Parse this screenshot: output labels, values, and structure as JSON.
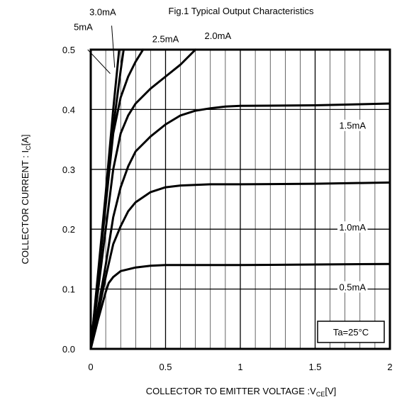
{
  "chart_data": {
    "type": "line",
    "title": "Fig.1 Typical Output Characteristics",
    "xlabel": {
      "main": "COLLECTOR TO EMITTER VOLTAGE :V",
      "sub": "CE",
      "unit": "[V]"
    },
    "ylabel": {
      "main": "COLLECTOR CURRENT : I",
      "sub": "C",
      "unit": "[A]"
    },
    "xlim": [
      0,
      2
    ],
    "ylim": [
      0,
      0.5
    ],
    "x_ticks": [
      0,
      0.5,
      1,
      1.5,
      2
    ],
    "x_tick_labels": [
      "0",
      "0.5",
      "1",
      "1.5",
      "2"
    ],
    "y_ticks": [
      0,
      0.1,
      0.2,
      0.3,
      0.4,
      0.5
    ],
    "y_tick_labels": [
      "0.0",
      "0.1",
      "0.2",
      "0.3",
      "0.4",
      "0.5"
    ],
    "grid": true,
    "annotation": "Ta=25°C",
    "series": [
      {
        "name": "0.5mA",
        "x": [
          0,
          0.05,
          0.1,
          0.12,
          0.15,
          0.2,
          0.3,
          0.4,
          0.5,
          0.75,
          1.0,
          1.5,
          2.0
        ],
        "y": [
          0,
          0.05,
          0.095,
          0.11,
          0.12,
          0.13,
          0.136,
          0.139,
          0.14,
          0.14,
          0.14,
          0.141,
          0.142
        ]
      },
      {
        "name": "1.0mA",
        "x": [
          0,
          0.05,
          0.1,
          0.15,
          0.2,
          0.25,
          0.3,
          0.4,
          0.5,
          0.6,
          0.8,
          1.0,
          1.5,
          2.0
        ],
        "y": [
          0,
          0.06,
          0.12,
          0.175,
          0.205,
          0.23,
          0.245,
          0.262,
          0.27,
          0.273,
          0.275,
          0.275,
          0.276,
          0.278
        ]
      },
      {
        "name": "1.5mA",
        "x": [
          0,
          0.05,
          0.1,
          0.15,
          0.2,
          0.25,
          0.3,
          0.4,
          0.5,
          0.6,
          0.7,
          0.8,
          0.9,
          1.0,
          1.5,
          2.0
        ],
        "y": [
          0,
          0.07,
          0.14,
          0.22,
          0.27,
          0.305,
          0.33,
          0.355,
          0.375,
          0.39,
          0.398,
          0.402,
          0.405,
          0.406,
          0.407,
          0.41
        ]
      },
      {
        "name": "2.0mA",
        "x": [
          0,
          0.05,
          0.1,
          0.15,
          0.2,
          0.25,
          0.3,
          0.4,
          0.5,
          0.6,
          0.7
        ],
        "y": [
          0,
          0.1,
          0.2,
          0.3,
          0.36,
          0.39,
          0.41,
          0.435,
          0.455,
          0.475,
          0.5
        ]
      },
      {
        "name": "2.5mA",
        "x": [
          0,
          0.05,
          0.1,
          0.15,
          0.2,
          0.25,
          0.3,
          0.35
        ],
        "y": [
          0,
          0.12,
          0.24,
          0.36,
          0.42,
          0.455,
          0.48,
          0.5
        ]
      },
      {
        "name": "3.0mA",
        "x": [
          0,
          0.05,
          0.1,
          0.15,
          0.2,
          0.22
        ],
        "y": [
          0,
          0.125,
          0.25,
          0.37,
          0.465,
          0.5
        ]
      },
      {
        "name": "5mA",
        "x": [
          0,
          0.05,
          0.1,
          0.15,
          0.19
        ],
        "y": [
          0,
          0.13,
          0.26,
          0.4,
          0.5
        ]
      }
    ],
    "overflow_leaders": [
      {
        "for": "5mA",
        "x": [
          -0.02,
          0.13
        ],
        "y": [
          0.5,
          0.46
        ]
      },
      {
        "for": "3.0mA",
        "x": [
          0.14,
          0.16
        ],
        "y": [
          0.54,
          0.47
        ]
      }
    ],
    "labels": [
      {
        "text": "0.5mA",
        "x": 1.75,
        "y": 0.1
      },
      {
        "text": "1.0mA",
        "x": 1.75,
        "y": 0.2
      },
      {
        "text": "1.5mA",
        "x": 1.75,
        "y": 0.37
      },
      {
        "text": "2.0mA",
        "x": 0.85,
        "y": 0.52
      },
      {
        "text": "2.5mA",
        "x": 0.5,
        "y": 0.515
      },
      {
        "text": "3.0mA",
        "x": 0.08,
        "y": 0.56
      },
      {
        "text": "5mA",
        "x": -0.05,
        "y": 0.535
      }
    ]
  }
}
